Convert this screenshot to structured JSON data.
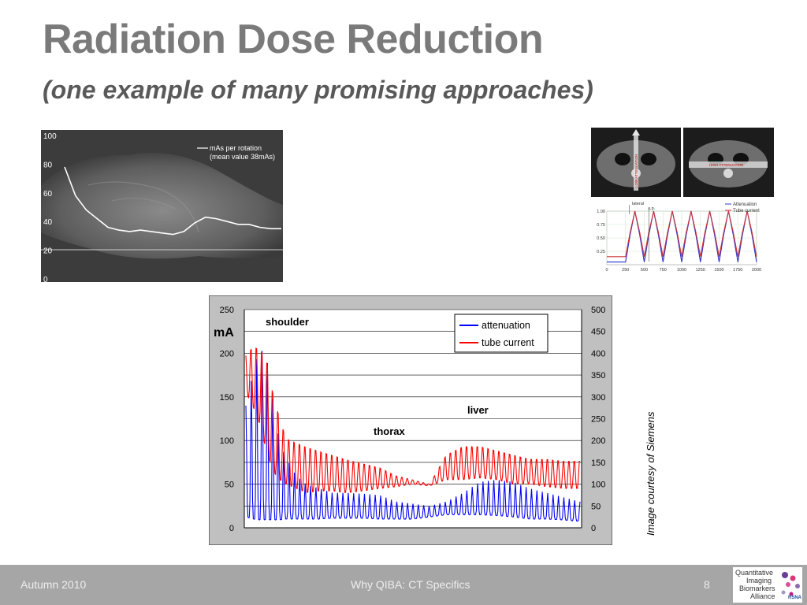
{
  "slide": {
    "title": "Radiation Dose Reduction",
    "subtitle": "(one example of many promising approaches)",
    "credit": "Image courtesy of Siemens"
  },
  "footer": {
    "left": "Autumn 2010",
    "center": "Why QIBA: CT Specifics",
    "page": "8"
  },
  "logo": {
    "line1": "Quantitative",
    "line2": "Imaging",
    "line3": "Biomarkers",
    "line4": "Alliance",
    "badge": "RSNA"
  },
  "chart_data": [
    {
      "type": "line",
      "legend": [
        "mAs per rotation",
        "(mean value 38mAs)"
      ],
      "ylim": [
        0,
        100
      ],
      "yticks": [
        0,
        20,
        40,
        60,
        80,
        100
      ],
      "series": [
        {
          "name": "mAs per rotation",
          "x": [
            0,
            5,
            10,
            15,
            20,
            25,
            30,
            35,
            40,
            45,
            50,
            55,
            60,
            65,
            70,
            75,
            80,
            85,
            90,
            95,
            100
          ],
          "y": [
            78,
            58,
            48,
            42,
            36,
            34,
            33,
            34,
            33,
            32,
            31,
            33,
            39,
            43,
            42,
            40,
            38,
            38,
            36,
            35,
            35
          ]
        }
      ]
    },
    {
      "type": "line",
      "labels": [
        "LOW ATTENUATION",
        "HIGH ATTENUATION",
        "lateral",
        "a.p."
      ],
      "legend": [
        "Attenuation",
        "Tube current"
      ],
      "xlim": [
        0,
        2000
      ],
      "xticks": [
        0,
        250,
        500,
        750,
        1000,
        1250,
        1500,
        1750,
        2000
      ],
      "ylim": [
        0,
        1
      ],
      "yticks": [
        "0.25",
        "0.50",
        "0.75",
        "1.00"
      ],
      "series": [
        {
          "name": "Attenuation",
          "color": "#3333cc",
          "x": [
            0,
            125,
            250,
            310,
            375,
            440,
            500,
            560,
            625,
            690,
            750,
            810,
            875,
            940,
            1000,
            1060,
            1125,
            1190,
            1250,
            1310,
            1375,
            1440,
            1500,
            1560,
            1625,
            1690,
            1750,
            1810,
            1875,
            1940,
            2000
          ],
          "y": [
            0.05,
            0.05,
            0.05,
            0.55,
            1.0,
            0.55,
            0.05,
            0.55,
            1.0,
            0.55,
            0.05,
            0.55,
            1.0,
            0.55,
            0.05,
            0.55,
            1.0,
            0.55,
            0.05,
            0.55,
            1.0,
            0.55,
            0.05,
            0.55,
            1.0,
            0.55,
            0.05,
            0.55,
            1.0,
            0.55,
            0.05
          ]
        },
        {
          "name": "Tube current",
          "color": "#cc3333",
          "x": [
            0,
            125,
            250,
            310,
            375,
            440,
            500,
            560,
            625,
            690,
            750,
            810,
            875,
            940,
            1000,
            1060,
            1125,
            1190,
            1250,
            1310,
            1375,
            1440,
            1500,
            1560,
            1625,
            1690,
            1750,
            1810,
            1875,
            1940,
            2000
          ],
          "y": [
            0.15,
            0.15,
            0.15,
            0.6,
            1.0,
            0.6,
            0.15,
            0.6,
            1.0,
            0.6,
            0.15,
            0.6,
            1.0,
            0.6,
            0.15,
            0.6,
            1.0,
            0.6,
            0.15,
            0.6,
            1.0,
            0.6,
            0.15,
            0.6,
            1.0,
            0.6,
            0.15,
            0.6,
            1.0,
            0.6,
            0.15
          ]
        }
      ]
    },
    {
      "type": "line",
      "ylabel_left": "mA",
      "ylim_left": [
        0,
        250
      ],
      "yticks_left": [
        0,
        50,
        100,
        150,
        200,
        250
      ],
      "ylim_right": [
        0,
        500
      ],
      "yticks_right": [
        0,
        50,
        100,
        150,
        200,
        250,
        300,
        350,
        400,
        450,
        500
      ],
      "annotations": [
        "shoulder",
        "thorax",
        "liver"
      ],
      "series": [
        {
          "name": "attenuation",
          "color": "#0000ff",
          "axis": "right",
          "envelope_x": [
            0,
            2,
            4,
            6,
            8,
            10,
            12,
            15,
            18,
            22,
            26,
            30,
            35,
            40,
            45,
            50,
            55,
            60,
            65,
            70,
            75,
            80,
            85,
            90,
            95,
            100
          ],
          "envelope_low": [
            25,
            20,
            18,
            18,
            18,
            18,
            20,
            20,
            20,
            20,
            22,
            22,
            22,
            20,
            20,
            20,
            25,
            30,
            30,
            30,
            28,
            25,
            20,
            20,
            18,
            15
          ],
          "envelope_high": [
            280,
            350,
            410,
            400,
            300,
            200,
            160,
            120,
            100,
            90,
            80,
            80,
            78,
            75,
            60,
            55,
            50,
            60,
            80,
            105,
            110,
            105,
            90,
            80,
            70,
            60
          ]
        },
        {
          "name": "tube current",
          "color": "#ff0000",
          "axis": "left",
          "envelope_x": [
            0,
            2,
            4,
            6,
            8,
            10,
            12,
            15,
            18,
            22,
            26,
            30,
            35,
            40,
            45,
            50,
            55,
            60,
            65,
            70,
            75,
            80,
            85,
            90,
            95,
            100
          ],
          "envelope_low": [
            155,
            140,
            120,
            90,
            65,
            55,
            50,
            45,
            40,
            42,
            42,
            40,
            42,
            45,
            47,
            50,
            48,
            55,
            55,
            57,
            55,
            50,
            50,
            47,
            45,
            45
          ],
          "envelope_high": [
            200,
            210,
            210,
            200,
            160,
            130,
            105,
            100,
            95,
            90,
            85,
            80,
            75,
            70,
            60,
            55,
            50,
            85,
            95,
            95,
            90,
            85,
            80,
            80,
            78,
            78
          ]
        }
      ]
    }
  ]
}
